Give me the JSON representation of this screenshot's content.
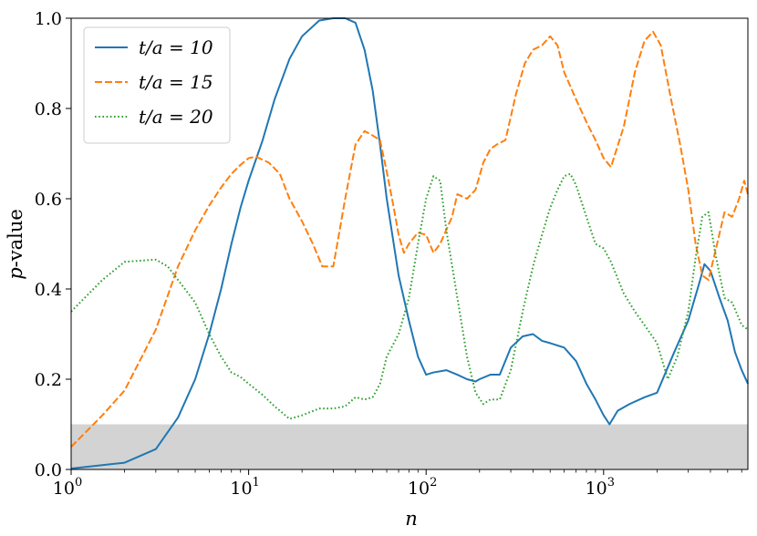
{
  "chart_data": {
    "type": "line",
    "xlabel": "n",
    "ylabel": "p-value",
    "xscale": "log",
    "xlim": [
      1,
      6500
    ],
    "ylim": [
      0,
      1
    ],
    "xticks": [
      1,
      10,
      100,
      1000
    ],
    "xtick_labels": [
      "10^0",
      "10^1",
      "10^2",
      "10^3"
    ],
    "yticks": [
      0.0,
      0.2,
      0.4,
      0.6,
      0.8,
      1.0
    ],
    "ytick_labels": [
      "0.0",
      "0.2",
      "0.4",
      "0.6",
      "0.8",
      "1.0"
    ],
    "shaded_band": {
      "y_from": 0.0,
      "y_to": 0.1,
      "color": "#d3d3d3"
    },
    "grid": false,
    "legend_position": "top-left",
    "series": [
      {
        "name": "t/a = 10",
        "color": "#1f77b4",
        "style": "solid",
        "x": [
          1,
          2,
          3,
          4,
          5,
          6,
          7,
          8,
          9,
          10,
          12,
          14,
          17,
          20,
          25,
          30,
          35,
          40,
          45,
          50,
          55,
          60,
          70,
          80,
          90,
          100,
          110,
          130,
          150,
          170,
          190,
          200,
          230,
          260,
          300,
          350,
          400,
          450,
          500,
          600,
          700,
          800,
          900,
          1000,
          1080,
          1200,
          1400,
          1700,
          2000,
          2500,
          3000,
          3500,
          3700,
          4000,
          4500,
          5000,
          5500,
          6000,
          6500
        ],
        "y": [
          0.002,
          0.015,
          0.045,
          0.115,
          0.2,
          0.3,
          0.4,
          0.5,
          0.58,
          0.64,
          0.73,
          0.82,
          0.91,
          0.96,
          0.995,
          1.0,
          1.0,
          0.99,
          0.93,
          0.84,
          0.72,
          0.6,
          0.43,
          0.33,
          0.25,
          0.21,
          0.215,
          0.22,
          0.21,
          0.2,
          0.195,
          0.2,
          0.21,
          0.21,
          0.27,
          0.295,
          0.3,
          0.285,
          0.28,
          0.27,
          0.24,
          0.19,
          0.155,
          0.12,
          0.1,
          0.13,
          0.145,
          0.16,
          0.17,
          0.26,
          0.33,
          0.42,
          0.455,
          0.44,
          0.38,
          0.33,
          0.26,
          0.22,
          0.19
        ]
      },
      {
        "name": "t/a = 15",
        "color": "#ff7f0e",
        "style": "dashed",
        "x": [
          1,
          1.5,
          2,
          3,
          4,
          5,
          6,
          7,
          8,
          9,
          10,
          11,
          13,
          15,
          17,
          20,
          23,
          26,
          30,
          35,
          40,
          45,
          50,
          55,
          60,
          65,
          70,
          75,
          80,
          90,
          100,
          110,
          120,
          140,
          150,
          170,
          190,
          210,
          230,
          250,
          280,
          320,
          360,
          400,
          450,
          500,
          550,
          600,
          700,
          800,
          900,
          1000,
          1100,
          1300,
          1500,
          1700,
          1900,
          2100,
          2400,
          2700,
          3000,
          3300,
          3600,
          3900,
          4300,
          4800,
          5300,
          5800,
          6200,
          6500
        ],
        "y": [
          0.05,
          0.12,
          0.175,
          0.31,
          0.45,
          0.53,
          0.585,
          0.625,
          0.655,
          0.675,
          0.69,
          0.693,
          0.68,
          0.655,
          0.6,
          0.55,
          0.5,
          0.45,
          0.45,
          0.6,
          0.72,
          0.75,
          0.74,
          0.73,
          0.66,
          0.59,
          0.52,
          0.48,
          0.5,
          0.525,
          0.52,
          0.48,
          0.5,
          0.56,
          0.61,
          0.6,
          0.62,
          0.68,
          0.71,
          0.72,
          0.73,
          0.83,
          0.9,
          0.93,
          0.94,
          0.96,
          0.94,
          0.88,
          0.82,
          0.77,
          0.73,
          0.69,
          0.67,
          0.76,
          0.88,
          0.95,
          0.97,
          0.94,
          0.82,
          0.72,
          0.62,
          0.5,
          0.43,
          0.42,
          0.49,
          0.57,
          0.56,
          0.6,
          0.64,
          0.61
        ]
      },
      {
        "name": "t/a = 20",
        "color": "#2ca02c",
        "style": "dotted",
        "x": [
          1,
          1.5,
          2,
          2.5,
          3,
          3.5,
          4,
          5,
          6,
          7,
          8,
          9,
          10,
          12,
          14,
          17,
          20,
          25,
          30,
          35,
          40,
          45,
          50,
          55,
          60,
          70,
          80,
          90,
          100,
          110,
          120,
          130,
          150,
          170,
          190,
          210,
          230,
          260,
          300,
          350,
          400,
          450,
          500,
          550,
          600,
          650,
          700,
          800,
          900,
          1000,
          1100,
          1300,
          1500,
          1700,
          2000,
          2300,
          2600,
          3000,
          3300,
          3600,
          3900,
          4300,
          4800,
          5300,
          6000,
          6500
        ],
        "y": [
          0.35,
          0.42,
          0.46,
          0.463,
          0.465,
          0.45,
          0.42,
          0.37,
          0.3,
          0.25,
          0.215,
          0.205,
          0.19,
          0.165,
          0.14,
          0.112,
          0.12,
          0.135,
          0.135,
          0.14,
          0.16,
          0.155,
          0.16,
          0.19,
          0.25,
          0.3,
          0.38,
          0.5,
          0.6,
          0.65,
          0.64,
          0.53,
          0.38,
          0.25,
          0.17,
          0.145,
          0.155,
          0.155,
          0.22,
          0.35,
          0.45,
          0.52,
          0.58,
          0.62,
          0.65,
          0.655,
          0.63,
          0.56,
          0.5,
          0.49,
          0.46,
          0.39,
          0.35,
          0.32,
          0.28,
          0.2,
          0.25,
          0.35,
          0.47,
          0.56,
          0.57,
          0.47,
          0.38,
          0.37,
          0.32,
          0.31
        ]
      }
    ]
  },
  "legend": {
    "entries": [
      {
        "label": "t/a = 10",
        "color": "#1f77b4",
        "style": "solid"
      },
      {
        "label": "t/a = 15",
        "color": "#ff7f0e",
        "style": "dashed"
      },
      {
        "label": "t/a = 20",
        "color": "#2ca02c",
        "style": "dotted"
      }
    ]
  },
  "colors": {
    "band": "#d3d3d3",
    "axis": "#000000"
  }
}
